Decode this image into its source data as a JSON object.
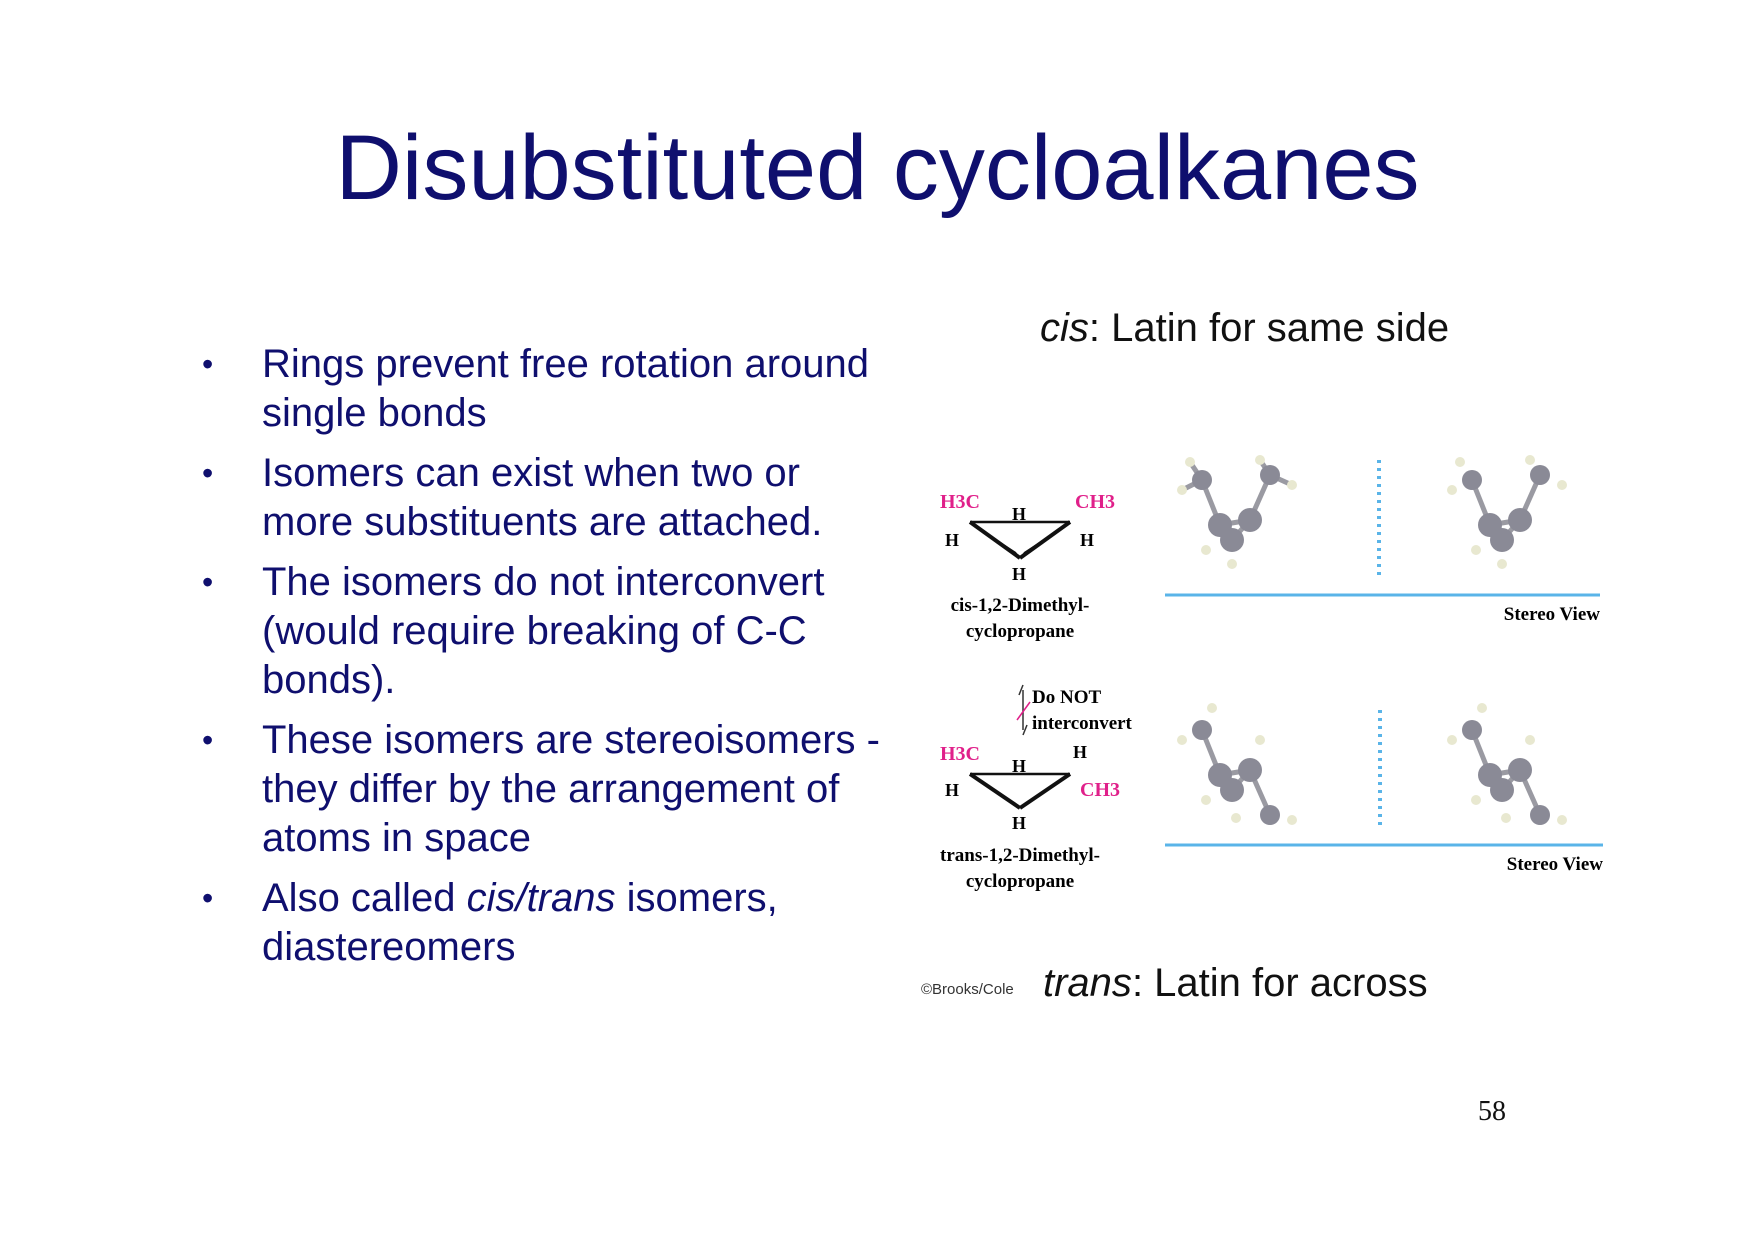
{
  "title": "Disubstituted cycloalkanes",
  "bullets": [
    {
      "text": "Rings prevent free rotation around single bonds"
    },
    {
      "text": "Isomers can exist when two or more substituents are attached."
    },
    {
      "text": "The isomers do not interconvert (would require breaking of C-C bonds)."
    },
    {
      "text": "These isomers are stereoisomers - they differ by the arrangement of atoms in space"
    },
    {
      "pre": "Also called ",
      "em": "cis/trans",
      "post": " isomers, diastereomers"
    }
  ],
  "cis_caption": {
    "term": "cis",
    "rest": ": Latin for same side"
  },
  "trans_caption": {
    "term": "trans",
    "rest": ": Latin for across"
  },
  "figure": {
    "cis_name_1": "cis-1,2-Dimethyl-",
    "cis_name_2": "cyclopropane",
    "trans_name_1": "trans-1,2-Dimethyl-",
    "trans_name_2": "cyclopropane",
    "h3c": "H3C",
    "ch3": "CH3",
    "h": "H",
    "do_not_1": "Do NOT",
    "do_not_2": "interconvert",
    "stereo_view": "Stereo View"
  },
  "credit": "©Brooks/Cole",
  "page_number": "58",
  "colors": {
    "title": "#0f0f6e",
    "substituent": "#e0208a",
    "divider": "#5ab4e8"
  }
}
